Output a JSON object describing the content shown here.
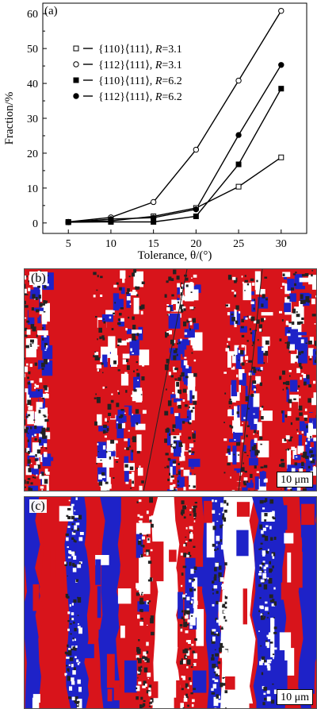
{
  "chart_data": {
    "type": "line",
    "panel_label": "(a)",
    "xlabel": "Tolerance, θ/(°)",
    "ylabel": "Fraction/%",
    "x": [
      5,
      10,
      15,
      20,
      25,
      30
    ],
    "xlim": [
      2,
      33
    ],
    "ylim": [
      -3,
      63
    ],
    "xticks": [
      5,
      10,
      15,
      20,
      25,
      30
    ],
    "yticks": [
      0,
      10,
      20,
      30,
      40,
      50,
      60
    ],
    "legend_position": "upper-left",
    "series": [
      {
        "name": "{110}⟨111⟩, R=3.1",
        "name_parts": [
          "{110}⟨111⟩, ",
          "R",
          "=3.1"
        ],
        "marker": "square-open",
        "values": [
          0.3,
          0.6,
          1.9,
          4.3,
          10.4,
          18.8
        ]
      },
      {
        "name": "{112}⟨111⟩, R=3.1",
        "name_parts": [
          "{112}⟨111⟩, ",
          "R",
          "=3.1"
        ],
        "marker": "circle-open",
        "values": [
          0.3,
          1.6,
          6.0,
          21.0,
          40.8,
          60.8
        ]
      },
      {
        "name": "{110}⟨111⟩, R=6.2",
        "name_parts": [
          "{110}⟨111⟩, ",
          "R",
          "=6.2"
        ],
        "marker": "square-filled",
        "values": [
          0.2,
          0.3,
          0.3,
          1.9,
          16.8,
          38.5
        ]
      },
      {
        "name": "{112}⟨111⟩, R=6.2",
        "name_parts": [
          "{112}⟨111⟩, ",
          "R",
          "=6.2"
        ],
        "marker": "circle-filled",
        "values": [
          0.2,
          1.1,
          1.5,
          3.9,
          25.2,
          45.3
        ]
      }
    ]
  },
  "maps": {
    "b": {
      "label": "(b)",
      "scale_bar": "10 μm"
    },
    "c": {
      "label": "(c)",
      "scale_bar": "10 μm"
    }
  },
  "colors": {
    "red": "#d8141b",
    "blue": "#1e22c8",
    "white": "#ffffff",
    "boundary": "#222222"
  }
}
